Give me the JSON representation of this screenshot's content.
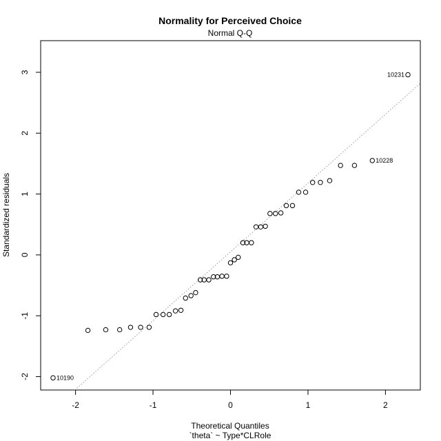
{
  "chart_data": {
    "type": "scatter",
    "title": "Normality for Perceived Choice",
    "subtitle": "Normal Q-Q",
    "xlabel": "Theoretical Quantiles",
    "xlabel2": "`theta` ~ Type*CLRole",
    "ylabel": "Standardized residuals",
    "xlim": [
      -2.45,
      2.45
    ],
    "ylim": [
      -2.22,
      3.52
    ],
    "xticks": [
      -2,
      -1,
      0,
      1,
      2
    ],
    "yticks": [
      -2,
      -1,
      0,
      1,
      2,
      3
    ],
    "grid": false,
    "reference_line": {
      "style": "dotted",
      "color": "#999999",
      "slope": 1.13,
      "intercept": 0.05
    },
    "points": [
      {
        "x": -2.29,
        "y": -2.02,
        "label": "10190"
      },
      {
        "x": -1.84,
        "y": -1.24
      },
      {
        "x": -1.61,
        "y": -1.23
      },
      {
        "x": -1.43,
        "y": -1.23
      },
      {
        "x": -1.29,
        "y": -1.19
      },
      {
        "x": -1.16,
        "y": -1.19
      },
      {
        "x": -1.05,
        "y": -1.19
      },
      {
        "x": -0.96,
        "y": -0.98
      },
      {
        "x": -0.87,
        "y": -0.98
      },
      {
        "x": -0.79,
        "y": -0.98
      },
      {
        "x": -0.71,
        "y": -0.92
      },
      {
        "x": -0.64,
        "y": -0.91
      },
      {
        "x": -0.58,
        "y": -0.71
      },
      {
        "x": -0.51,
        "y": -0.67
      },
      {
        "x": -0.45,
        "y": -0.62
      },
      {
        "x": -0.39,
        "y": -0.41
      },
      {
        "x": -0.34,
        "y": -0.41
      },
      {
        "x": -0.28,
        "y": -0.41
      },
      {
        "x": -0.22,
        "y": -0.36
      },
      {
        "x": -0.17,
        "y": -0.36
      },
      {
        "x": -0.11,
        "y": -0.35
      },
      {
        "x": -0.05,
        "y": -0.35
      },
      {
        "x": 0.0,
        "y": -0.13
      },
      {
        "x": 0.05,
        "y": -0.08
      },
      {
        "x": 0.1,
        "y": -0.04
      },
      {
        "x": 0.16,
        "y": 0.2
      },
      {
        "x": 0.21,
        "y": 0.2
      },
      {
        "x": 0.27,
        "y": 0.2
      },
      {
        "x": 0.33,
        "y": 0.46
      },
      {
        "x": 0.39,
        "y": 0.46
      },
      {
        "x": 0.45,
        "y": 0.47
      },
      {
        "x": 0.51,
        "y": 0.68
      },
      {
        "x": 0.58,
        "y": 0.68
      },
      {
        "x": 0.65,
        "y": 0.69
      },
      {
        "x": 0.72,
        "y": 0.81
      },
      {
        "x": 0.8,
        "y": 0.81
      },
      {
        "x": 0.88,
        "y": 1.03
      },
      {
        "x": 0.97,
        "y": 1.03
      },
      {
        "x": 1.06,
        "y": 1.19
      },
      {
        "x": 1.16,
        "y": 1.19
      },
      {
        "x": 1.28,
        "y": 1.22
      },
      {
        "x": 1.42,
        "y": 1.47
      },
      {
        "x": 1.6,
        "y": 1.47
      },
      {
        "x": 1.83,
        "y": 1.55,
        "label": "10228"
      },
      {
        "x": 2.29,
        "y": 2.96,
        "label": "10231"
      }
    ]
  }
}
